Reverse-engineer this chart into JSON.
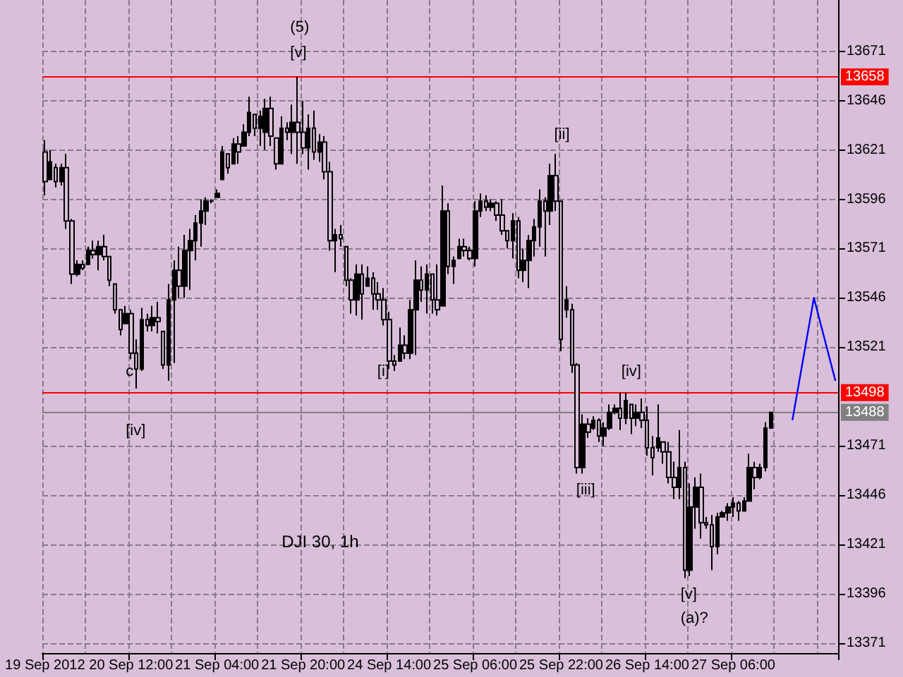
{
  "chart_data": {
    "type": "candlestick",
    "categories": [
      "19 Sep 2012",
      null,
      null,
      null,
      null,
      null,
      null,
      null,
      null,
      null,
      null,
      null,
      null,
      null,
      null,
      null,
      "20 Sep 12:00",
      null,
      null,
      null,
      null,
      null,
      null,
      null,
      null,
      null,
      null,
      null,
      null,
      null,
      null,
      null,
      "21 Sep 04:00",
      null,
      null,
      null,
      null,
      null,
      null,
      null,
      null,
      null,
      null,
      null,
      null,
      null,
      null,
      null,
      "21 Sep 20:00",
      null,
      null,
      null,
      null,
      null,
      null,
      null,
      null,
      null,
      null,
      null,
      null,
      null,
      null,
      null,
      "24 Sep 14:00",
      null,
      null,
      null,
      null,
      null,
      null,
      null,
      null,
      null,
      null,
      null,
      null,
      null,
      null,
      null,
      "25 Sep 06:00",
      null,
      null,
      null,
      null,
      null,
      null,
      null,
      null,
      null,
      null,
      null,
      null,
      null,
      null,
      null,
      "25 Sep 22:00",
      null,
      null,
      null,
      null,
      null,
      null,
      null,
      null,
      null,
      null,
      null,
      null,
      null,
      null,
      null,
      "26 Sep 14:00",
      null,
      null,
      null,
      null,
      null,
      null,
      null,
      null,
      null,
      null,
      null,
      null,
      null,
      null,
      null,
      "27 Sep 06:00",
      null,
      null,
      null,
      null,
      null,
      null,
      null,
      null,
      null,
      null,
      null,
      null,
      null,
      null,
      null,
      null,
      null,
      null,
      null
    ],
    "series": [
      {
        "color": "#000000",
        "ohlc": [
          [
            13620,
            13626,
            13598,
            13605
          ],
          [
            13606,
            13621,
            13606,
            13615
          ],
          [
            13612,
            13614,
            13602,
            13605
          ],
          [
            13605,
            13614,
            13603,
            13612
          ],
          [
            13612,
            13619,
            13581,
            13585
          ],
          [
            13585,
            13586,
            13553,
            13558
          ],
          [
            13558,
            13565,
            13557,
            13563
          ],
          [
            13563,
            13565,
            13560,
            13561
          ],
          [
            13563,
            13572,
            13563,
            13570
          ],
          [
            13570,
            13575,
            13566,
            13568
          ],
          [
            13568,
            13575,
            13560,
            13572
          ],
          [
            13572,
            13578,
            13565,
            13567
          ],
          [
            13567,
            13567,
            13552,
            13555
          ],
          [
            13553,
            13553,
            13538,
            13540
          ],
          [
            13540,
            13540,
            13527,
            13530
          ],
          [
            13533,
            13542,
            13533,
            13538
          ],
          [
            13538,
            13540,
            13515,
            13518
          ],
          [
            13518,
            13525,
            13500,
            13510
          ],
          [
            13510,
            13541,
            13509,
            13535
          ],
          [
            13535,
            13538,
            13529,
            13532
          ],
          [
            13532,
            13542,
            13529,
            13536
          ],
          [
            13536,
            13544,
            13528,
            13534
          ],
          [
            13529,
            13529,
            13510,
            13512
          ],
          [
            13512,
            13553,
            13504,
            13545
          ],
          [
            13545,
            13565,
            13513,
            13560
          ],
          [
            13560,
            13572,
            13546,
            13552
          ],
          [
            13552,
            13578,
            13546,
            13570
          ],
          [
            13570,
            13581,
            13550,
            13575
          ],
          [
            13575,
            13588,
            13565,
            13584
          ],
          [
            13584,
            13596,
            13572,
            13590
          ],
          [
            13590,
            13597,
            13583,
            13595
          ],
          [
            13595,
            13596,
            13594,
            13595
          ],
          [
            13597,
            13601,
            13597,
            13599
          ],
          [
            13606,
            13623,
            13606,
            13620
          ],
          [
            13619,
            13619,
            13609,
            13612
          ],
          [
            13614,
            13627,
            13614,
            13624
          ],
          [
            13624,
            13628,
            13614,
            13620
          ],
          [
            13623,
            13634,
            13623,
            13630
          ],
          [
            13630,
            13648,
            13628,
            13640
          ],
          [
            13639,
            13639,
            13628,
            13632
          ],
          [
            13632,
            13641,
            13623,
            13638
          ],
          [
            13630,
            13647,
            13621,
            13642
          ],
          [
            13642,
            13648,
            13623,
            13628
          ],
          [
            13627,
            13627,
            13611,
            13614
          ],
          [
            13614,
            13638,
            13614,
            13632
          ],
          [
            13632,
            13635,
            13626,
            13630
          ],
          [
            13630,
            13644,
            13619,
            13635
          ],
          [
            13635,
            13658,
            13614,
            13630
          ],
          [
            13630,
            13646,
            13619,
            13622
          ],
          [
            13622,
            13639,
            13611,
            13632
          ],
          [
            13632,
            13641,
            13616,
            13620
          ],
          [
            13620,
            13629,
            13615,
            13625
          ],
          [
            13625,
            13628,
            13606,
            13610
          ],
          [
            13610,
            13615,
            13570,
            13575
          ],
          [
            13575,
            13581,
            13559,
            13578
          ],
          [
            13578,
            13583,
            13572,
            13576
          ],
          [
            13572,
            13572,
            13552,
            13555
          ],
          [
            13555,
            13556,
            13538,
            13545
          ],
          [
            13545,
            13563,
            13537,
            13558
          ],
          [
            13558,
            13563,
            13535,
            13548
          ],
          [
            13552,
            13562,
            13552,
            13556
          ],
          [
            13556,
            13559,
            13540,
            13548
          ],
          [
            13548,
            13554,
            13540,
            13545
          ],
          [
            13545,
            13551,
            13532,
            13535
          ],
          [
            13535,
            13539,
            13510,
            13514
          ],
          [
            13514,
            13517,
            13509,
            13512
          ],
          [
            13514,
            13531,
            13514,
            13522
          ],
          [
            13522,
            13527,
            13515,
            13518
          ],
          [
            13518,
            13545,
            13515,
            13540
          ],
          [
            13540,
            13565,
            13517,
            13555
          ],
          [
            13555,
            13562,
            13544,
            13550
          ],
          [
            13550,
            13563,
            13538,
            13558
          ],
          [
            13558,
            13558,
            13538,
            13545
          ],
          [
            13545,
            13563,
            13537,
            13540
          ],
          [
            13542,
            13603,
            13542,
            13590
          ],
          [
            13590,
            13594,
            13558,
            13562
          ],
          [
            13562,
            13567,
            13553,
            13565
          ],
          [
            13566,
            13576,
            13566,
            13572
          ],
          [
            13572,
            13576,
            13567,
            13570
          ],
          [
            13570,
            13572,
            13565,
            13566
          ],
          [
            13566,
            13595,
            13562,
            13590
          ],
          [
            13590,
            13599,
            13587,
            13595
          ],
          [
            13595,
            13598,
            13590,
            13592
          ],
          [
            13592,
            13596,
            13590,
            13594
          ],
          [
            13594,
            13595,
            13585,
            13588
          ],
          [
            13588,
            13596,
            13578,
            13580
          ],
          [
            13580,
            13580,
            13571,
            13575
          ],
          [
            13575,
            13589,
            13566,
            13585
          ],
          [
            13585,
            13587,
            13556,
            13560
          ],
          [
            13560,
            13571,
            13554,
            13565
          ],
          [
            13565,
            13578,
            13551,
            13575
          ],
          [
            13575,
            13586,
            13567,
            13582
          ],
          [
            13582,
            13601,
            13572,
            13595
          ],
          [
            13595,
            13597,
            13567,
            13590
          ],
          [
            13590,
            13614,
            13583,
            13608
          ],
          [
            13608,
            13619,
            13590,
            13595
          ],
          [
            13595,
            13595,
            13519,
            13525
          ],
          [
            13540,
            13552,
            13536,
            13545
          ],
          [
            13540,
            13543,
            13508,
            13512
          ],
          [
            13512,
            13513,
            13457,
            13460
          ],
          [
            13460,
            13487,
            13457,
            13482
          ],
          [
            13482,
            13485,
            13475,
            13478
          ],
          [
            13480,
            13486,
            13479,
            13484
          ],
          [
            13484,
            13485,
            13473,
            13476
          ],
          [
            13476,
            13483,
            13471,
            13480
          ],
          [
            13480,
            13492,
            13479,
            13488
          ],
          [
            13488,
            13492,
            13487,
            13490
          ],
          [
            13490,
            13498,
            13479,
            13485
          ],
          [
            13485,
            13498,
            13482,
            13494
          ],
          [
            13492,
            13492,
            13477,
            13485
          ],
          [
            13485,
            13492,
            13481,
            13488
          ],
          [
            13488,
            13495,
            13480,
            13484
          ],
          [
            13484,
            13491,
            13466,
            13470
          ],
          [
            13470,
            13476,
            13456,
            13465
          ],
          [
            13470,
            13492,
            13468,
            13475
          ],
          [
            13473,
            13473,
            13462,
            13468
          ],
          [
            13468,
            13473,
            13452,
            13455
          ],
          [
            13455,
            13463,
            13444,
            13450
          ],
          [
            13450,
            13479,
            13444,
            13460
          ],
          [
            13460,
            13463,
            13404,
            13408
          ],
          [
            13408,
            13452,
            13405,
            13440
          ],
          [
            13440,
            13455,
            13429,
            13450
          ],
          [
            13450,
            13457,
            13424,
            13432
          ],
          [
            13432,
            13435,
            13429,
            13431
          ],
          [
            13431,
            13436,
            13408,
            13420
          ],
          [
            13420,
            13437,
            13416,
            13435
          ],
          [
            13435,
            13438,
            13435,
            13437
          ],
          [
            13437,
            13442,
            13433,
            13440
          ],
          [
            13440,
            13445,
            13435,
            13442
          ],
          [
            13442,
            13443,
            13433,
            13438
          ],
          [
            13438,
            13445,
            13438,
            13443
          ],
          [
            13443,
            13467,
            13443,
            13460
          ],
          [
            13460,
            13463,
            13449,
            13455
          ],
          [
            13455,
            13462,
            13454,
            13460
          ],
          [
            13460,
            13483,
            13458,
            13480
          ],
          [
            13480,
            13488,
            13480,
            13488
          ],
          null,
          null,
          null,
          null,
          null,
          null,
          null,
          null,
          null,
          null,
          null,
          null
        ]
      },
      {
        "type": "line",
        "color": "#0000ff",
        "values": [
          null,
          null,
          null,
          null,
          null,
          null,
          null,
          null,
          null,
          null,
          null,
          null,
          null,
          null,
          null,
          null,
          null,
          null,
          null,
          null,
          null,
          null,
          null,
          null,
          null,
          null,
          null,
          null,
          null,
          null,
          null,
          null,
          null,
          null,
          null,
          null,
          null,
          null,
          null,
          null,
          null,
          null,
          null,
          null,
          null,
          null,
          null,
          null,
          null,
          null,
          null,
          null,
          null,
          null,
          null,
          null,
          null,
          null,
          null,
          null,
          null,
          null,
          null,
          null,
          null,
          null,
          null,
          null,
          null,
          null,
          null,
          null,
          null,
          null,
          null,
          null,
          null,
          null,
          null,
          null,
          null,
          null,
          null,
          null,
          null,
          null,
          null,
          null,
          null,
          null,
          null,
          null,
          null,
          null,
          null,
          null,
          null,
          null,
          null,
          null,
          null,
          null,
          null,
          null,
          null,
          null,
          null,
          null,
          null,
          null,
          null,
          null,
          null,
          null,
          null,
          null,
          null,
          null,
          null,
          null,
          null,
          null,
          null,
          null,
          null,
          null,
          null,
          null,
          null,
          null,
          null,
          null,
          null,
          null,
          null,
          null,
          null,
          null,
          null,
          13484,
          null,
          null,
          null,
          13546,
          null,
          null,
          null,
          13504
        ]
      }
    ],
    "ylim": [
      13366,
      13697
    ],
    "yticks": [
      13371,
      13396,
      13421,
      13446,
      13471,
      13521,
      13546,
      13571,
      13596,
      13621,
      13646,
      13671
    ],
    "grid": true,
    "ref_lines": [
      {
        "axis": "y",
        "value": 13658,
        "label": "13658",
        "color": "#ff0000"
      },
      {
        "axis": "y",
        "value": 13498,
        "label": "13498",
        "color": "#ff0000"
      },
      {
        "axis": "y",
        "value": 13488,
        "label": "13488",
        "color": "#808080"
      }
    ],
    "annotations": [
      "(5)",
      "[v]",
      "c",
      "[iv]",
      "[i]",
      "[ii]",
      "[iii]",
      "[iv]",
      "[v]",
      "(a)?",
      "DJI 30, 1h"
    ]
  }
}
